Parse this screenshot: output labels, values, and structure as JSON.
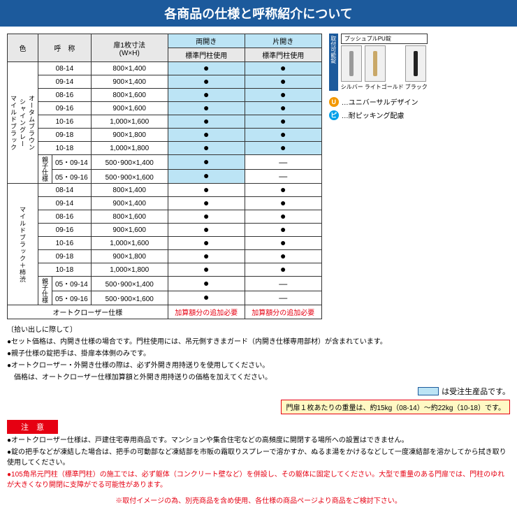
{
  "title": "各商品の仕様と呼称紹介について",
  "headers": {
    "color": "色",
    "name": "呼　称",
    "doorSize": "扉1枚寸法\n(W×H)",
    "double": "両開き",
    "single": "片開き",
    "pillar": "標準門柱使用"
  },
  "colors": {
    "group1": "オータムブラウン\nシャイングレー\nマイルドブラック",
    "group2": "マイルドブラック＋柿渋"
  },
  "oyako": "親子仕様",
  "rows1": [
    {
      "code": "08-14",
      "size": "800×1,400",
      "d": "●",
      "s": "●"
    },
    {
      "code": "09-14",
      "size": "900×1,400",
      "d": "●",
      "s": "●"
    },
    {
      "code": "08-16",
      "size": "800×1,600",
      "d": "●",
      "s": "●"
    },
    {
      "code": "09-16",
      "size": "900×1,600",
      "d": "●",
      "s": "●"
    },
    {
      "code": "10-16",
      "size": "1,000×1,600",
      "d": "●",
      "s": "●"
    },
    {
      "code": "09-18",
      "size": "900×1,800",
      "d": "●",
      "s": "●"
    },
    {
      "code": "10-18",
      "size": "1,000×1,800",
      "d": "●",
      "s": "●"
    }
  ],
  "oyakoRows1": [
    {
      "code": "05・09-14",
      "size": "500･900×1,400",
      "d": "●",
      "s": "―"
    },
    {
      "code": "05・09-16",
      "size": "500･900×1,600",
      "d": "●",
      "s": "―"
    }
  ],
  "rows2": [
    {
      "code": "08-14",
      "size": "800×1,400",
      "d": "●",
      "s": "●"
    },
    {
      "code": "09-14",
      "size": "900×1,400",
      "d": "●",
      "s": "●"
    },
    {
      "code": "08-16",
      "size": "800×1,600",
      "d": "●",
      "s": "●"
    },
    {
      "code": "09-16",
      "size": "900×1,600",
      "d": "●",
      "s": "●"
    },
    {
      "code": "10-16",
      "size": "1,000×1,600",
      "d": "●",
      "s": "●"
    },
    {
      "code": "09-18",
      "size": "900×1,800",
      "d": "●",
      "s": "●"
    },
    {
      "code": "10-18",
      "size": "1,000×1,800",
      "d": "●",
      "s": "●"
    }
  ],
  "oyakoRows2": [
    {
      "code": "05・09-14",
      "size": "500･900×1,400",
      "d": "●",
      "s": "―"
    },
    {
      "code": "05・09-16",
      "size": "500･900×1,600",
      "d": "●",
      "s": "―"
    }
  ],
  "autoCloser": "オートクローザー仕様",
  "addCost": "加算額分の追加必要",
  "handleGroup": {
    "sideLabel": "取付可能錠",
    "title": "プッシュプルPU錠",
    "items": [
      {
        "name": "シルバー",
        "cls": ""
      },
      {
        "name": "ライトゴールド",
        "cls": "gold"
      },
      {
        "name": "ブラック",
        "cls": "black"
      }
    ]
  },
  "badges": {
    "u": "…ユニバーサルデザイン",
    "p": "…耐ピッキング配慮"
  },
  "notesTitle": "〔拾い出しに際して〕",
  "notes": [
    "●セット価格は、内開き仕様の場合です。門柱使用には、吊元側すきまガード（内開き仕様専用部材）が含まれています。",
    "●親子仕様の錠把手は、掛扉本体側のみです。",
    "●オートクローザー・外開き仕様の際は、必ず外開き用持送りを使用してください。",
    "　価格は、オートクローザー仕様加算額と外開き用持送りの価格を加えてください。"
  ],
  "legend": "は受注生産品です。",
  "weight": "門扉１枚あたりの重量は、約15kg（08-14）～約22kg（10-18）です。",
  "warnTitle": "注　意",
  "warns": [
    "●オートクローザー仕様は、戸建住宅専用商品です。マンションや集合住宅などの高頻度に開閉する場所への設置はできません。",
    "●錠の把手などが凍結した場合は、把手の可動部など凍結部を市販の霜取りスプレーで溶かすか、ぬるま湯をかけるなどして一度凍結部を溶かしてから拭き取り使用してください。",
    "●105角吊元門柱（標準門柱）の施工では、必ず躯体（コンクリート壁など）を併設し、その躯体に固定してください。大型で重量のある門扉では、門柱のゆれが大きくなり開閉に支障がでる可能性があります。"
  ],
  "footer": "※取付イメージの為、別売商品を含め使用、各仕様の商品ページより商品をご検討下さい。"
}
